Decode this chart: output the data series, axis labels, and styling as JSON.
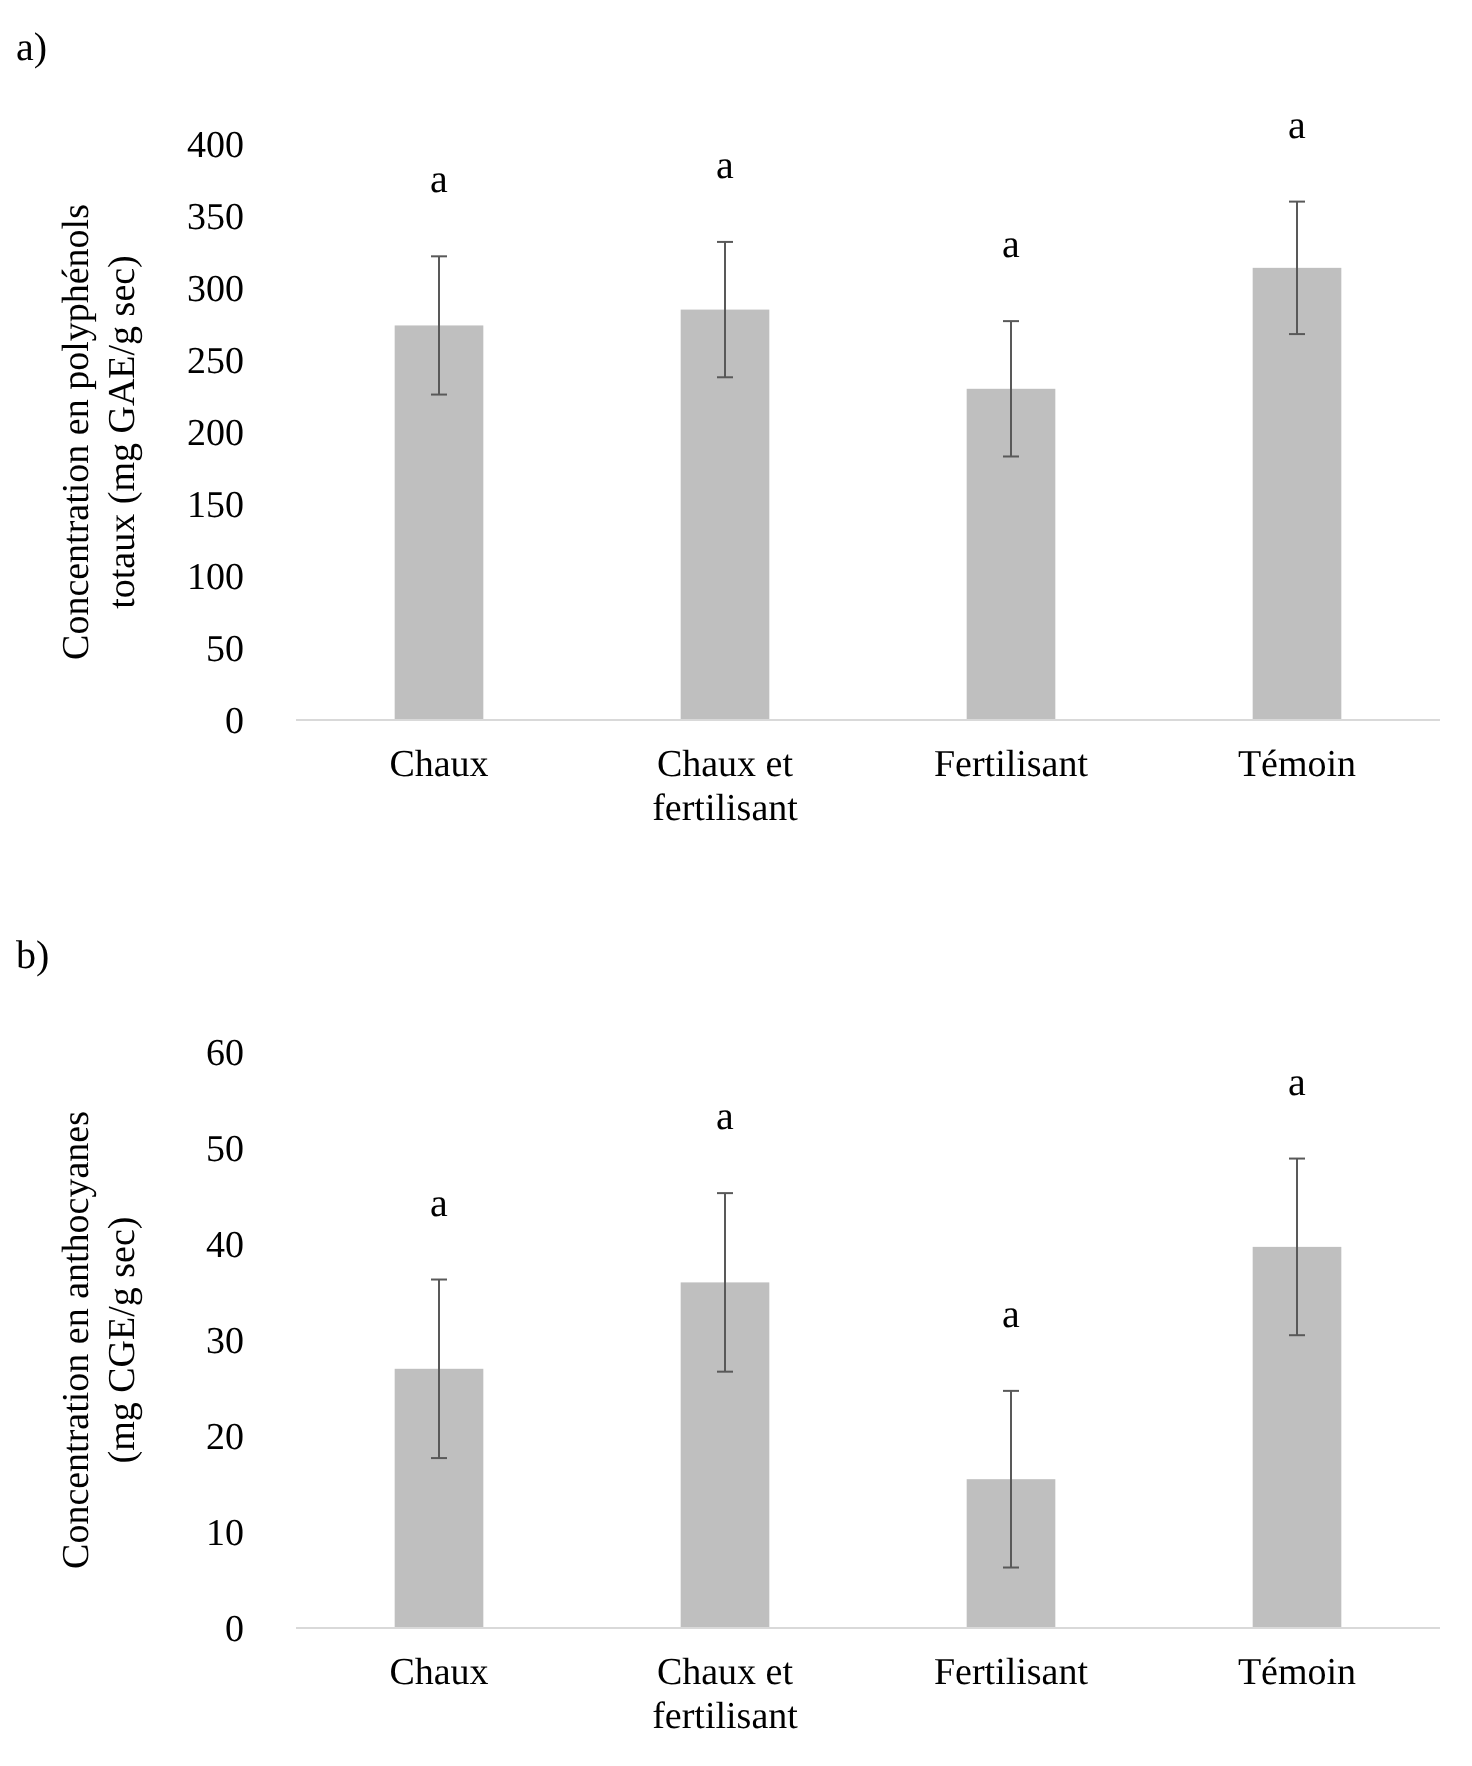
{
  "chart_data": [
    {
      "type": "bar",
      "categories": [
        "Chaux",
        "Chaux et fertilisant",
        "Fertilisant",
        "Témoin"
      ],
      "values": [
        274,
        285,
        230,
        314
      ],
      "errors": [
        48,
        47,
        47,
        46
      ],
      "color": "#bfbfbf",
      "ylabel": "Concentration en polyphénols totaux (mg GAE/g sec)",
      "ylim": [
        0,
        400
      ],
      "yticks": [
        0,
        50,
        100,
        150,
        200,
        250,
        300,
        350,
        400
      ],
      "grid": false,
      "annotations": [
        "a)",
        "a",
        "a",
        "a",
        "a"
      ]
    },
    {
      "type": "bar",
      "categories": [
        "Chaux",
        "Chaux et fertilisant",
        "Fertilisant",
        "Témoin"
      ],
      "values": [
        27,
        36,
        15.5,
        39.7
      ],
      "errors": [
        9.3,
        9.3,
        9.2,
        9.2
      ],
      "color": "#bfbfbf",
      "ylabel": "Concentration en anthocyanes (mg CGE/g sec)",
      "ylim": [
        0,
        60
      ],
      "yticks": [
        0,
        10,
        20,
        30,
        40,
        50,
        60
      ],
      "grid": false,
      "annotations": [
        "b)",
        "a",
        "a",
        "a",
        "a"
      ]
    }
  ]
}
